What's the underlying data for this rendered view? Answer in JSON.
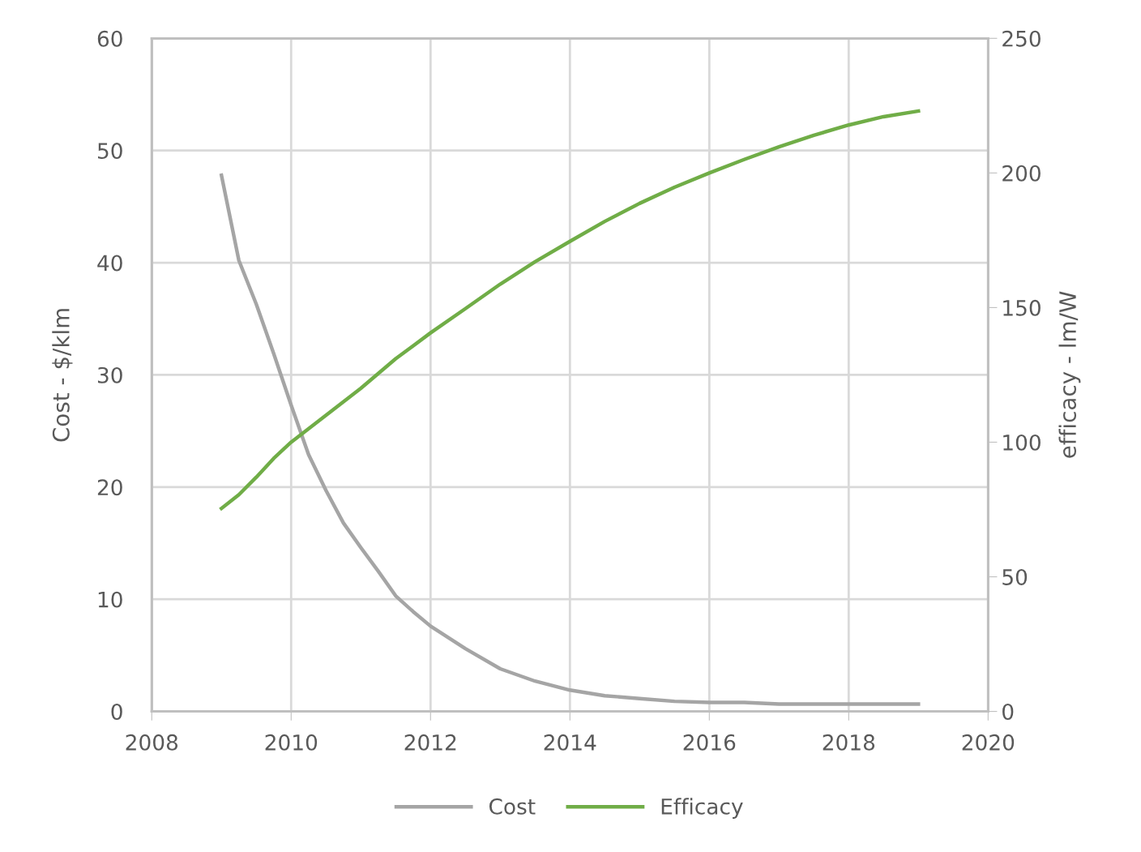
{
  "chart_data": {
    "type": "line",
    "ylabel": "Cost - $/klm",
    "y2label": "efficacy - lm/W",
    "xlim": [
      2008,
      2020
    ],
    "xticks": [
      2008,
      2010,
      2012,
      2014,
      2016,
      2018,
      2020
    ],
    "ylim": [
      0,
      60
    ],
    "yticks": [
      0,
      10,
      20,
      30,
      40,
      50,
      60
    ],
    "y2lim": [
      0,
      250
    ],
    "y2ticks": [
      0,
      50,
      100,
      150,
      200,
      250
    ],
    "grid": true,
    "legend": "bottom",
    "marker": "none",
    "line_style": "solid",
    "series": [
      {
        "name": "Cost",
        "color": "#a5a5a5",
        "x": [
          2009,
          2009.25,
          2009.5,
          2009.75,
          2010,
          2010.25,
          2010.5,
          2010.75,
          2011,
          2011.25,
          2011.5,
          2011.75,
          2012,
          2012.5,
          2013,
          2013.5,
          2014,
          2014.5,
          2015,
          2015.5,
          2016,
          2016.5,
          2017,
          2018,
          2019
        ],
        "values": [
          47.8,
          40.2,
          36.3,
          31.9,
          27.3,
          22.9,
          19.7,
          16.8,
          14.6,
          12.5,
          10.3,
          8.9,
          7.6,
          5.6,
          3.8,
          2.7,
          1.9,
          1.4,
          1.15,
          0.9,
          0.8,
          0.8,
          0.65,
          0.65,
          0.65
        ]
      },
      {
        "name": "Efficacy",
        "color": "#70ad47",
        "axis": "y2",
        "x": [
          2009,
          2009.25,
          2009.5,
          2009.75,
          2010,
          2010.5,
          2011,
          2011.5,
          2012,
          2012.5,
          2013,
          2013.5,
          2014,
          2014.5,
          2015,
          2015.5,
          2016,
          2016.5,
          2017,
          2017.5,
          2018,
          2018.5,
          2019
        ],
        "values": [
          75.4,
          80.5,
          87,
          94,
          100,
          110,
          120,
          131,
          140.6,
          149.6,
          158.7,
          167,
          174.6,
          182,
          188.7,
          194.7,
          200,
          205,
          209.7,
          214,
          217.8,
          220.9,
          223
        ]
      }
    ]
  }
}
